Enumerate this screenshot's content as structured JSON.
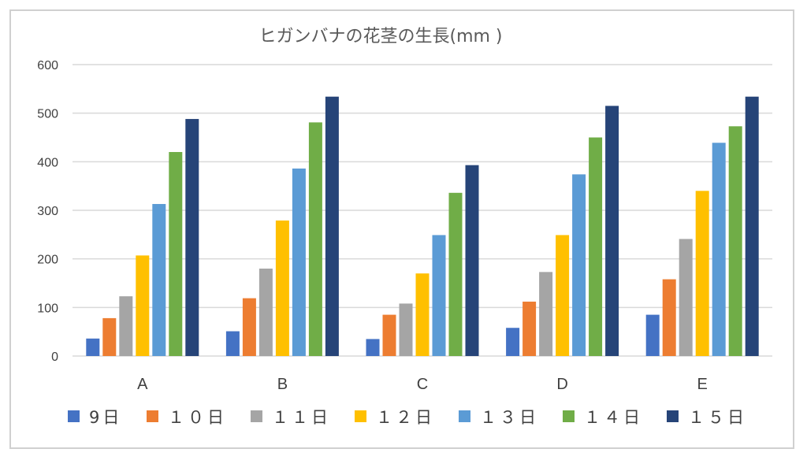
{
  "chart_data": {
    "type": "bar",
    "title": "ヒガンバナの花茎の生長(mm )",
    "categories": [
      "A",
      "B",
      "C",
      "D",
      "E"
    ],
    "ylim": [
      0,
      600
    ],
    "yticks": [
      0,
      100,
      200,
      300,
      400,
      500,
      600
    ],
    "grid": true,
    "legend": "bottom",
    "series": [
      {
        "name": "9日",
        "color": "#4472c4",
        "values": [
          36,
          51,
          35,
          58,
          85
        ]
      },
      {
        "name": "１０日",
        "color": "#ed7d31",
        "values": [
          78,
          119,
          85,
          112,
          158
        ]
      },
      {
        "name": "１１日",
        "color": "#a5a5a5",
        "values": [
          123,
          180,
          108,
          173,
          241
        ]
      },
      {
        "name": "１２日",
        "color": "#ffc000",
        "values": [
          207,
          279,
          170,
          249,
          340
        ]
      },
      {
        "name": "１３日",
        "color": "#5b9bd5",
        "values": [
          313,
          386,
          249,
          374,
          439
        ]
      },
      {
        "name": "１４日",
        "color": "#70ad47",
        "values": [
          420,
          481,
          336,
          450,
          473
        ]
      },
      {
        "name": "１５日",
        "color": "#264478",
        "values": [
          488,
          534,
          393,
          515,
          534
        ]
      }
    ]
  }
}
